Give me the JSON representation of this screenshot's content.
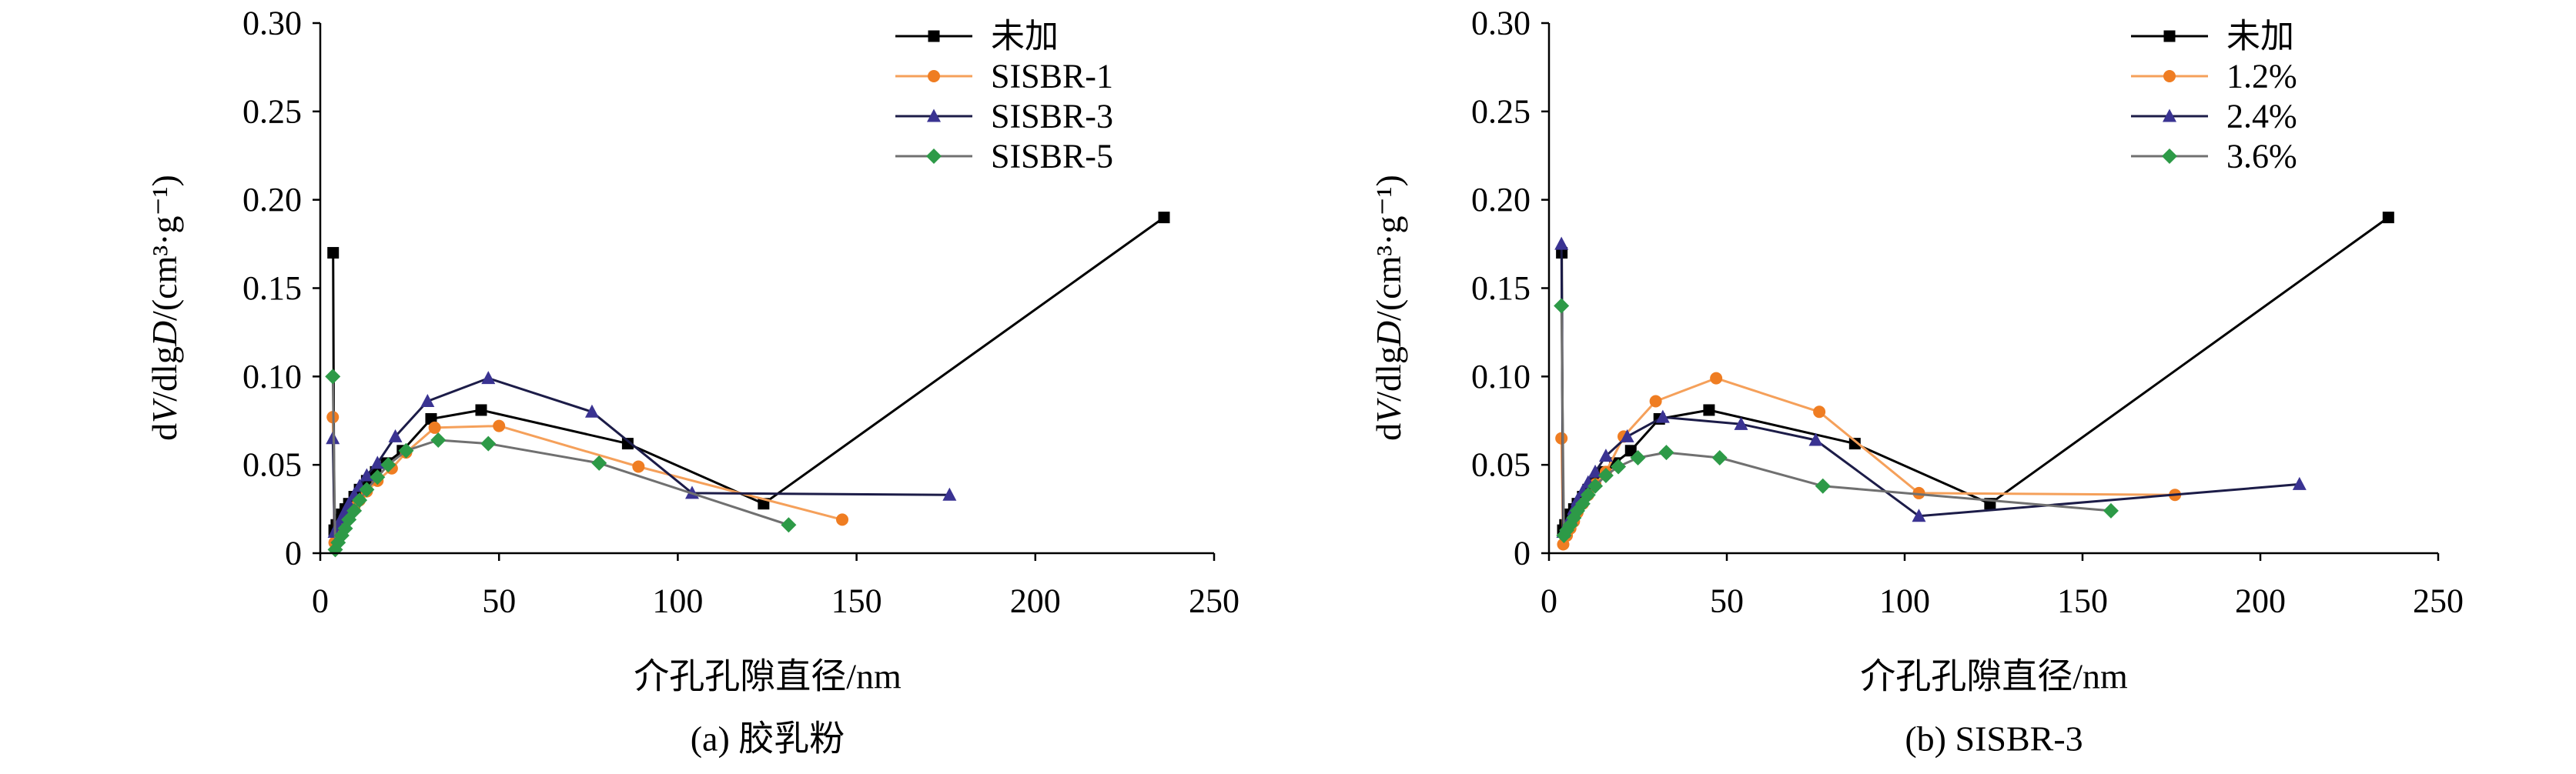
{
  "chart_data": [
    {
      "type": "line",
      "caption": "(a) 胶乳粉",
      "xlabel": "介孔孔隙直径/nm",
      "ylabel": "dV/dlgD/(cm³·g⁻¹)",
      "xlim": [
        0,
        250
      ],
      "ylim": [
        0,
        0.3
      ],
      "xticks": [
        "0",
        "50",
        "100",
        "150",
        "200",
        "250"
      ],
      "yticks": [
        "0",
        "0.05",
        "0.10",
        "0.15",
        "0.20",
        "0.25",
        "0.30"
      ],
      "grid": false,
      "legend_position": "top-right",
      "series": [
        {
          "name": "未加",
          "marker": "square",
          "color": "#000000",
          "line_color": "#000000",
          "x": [
            3.6,
            3.9,
            4.5,
            5.2,
            6,
            7,
            8,
            9.5,
            11,
            13,
            15.5,
            18.5,
            23,
            31,
            45,
            86,
            124,
            236
          ],
          "y": [
            0.17,
            0.013,
            0.016,
            0.019,
            0.022,
            0.025,
            0.028,
            0.032,
            0.036,
            0.041,
            0.046,
            0.051,
            0.058,
            0.076,
            0.081,
            0.062,
            0.028,
            0.19
          ]
        },
        {
          "name": "SISBR-1",
          "marker": "circle",
          "color": "#ef7d22",
          "line_color": "#f5a05a",
          "x": [
            3.5,
            4.0,
            5,
            6,
            7,
            8,
            9.5,
            11,
            13,
            16,
            20,
            24,
            32,
            50,
            89,
            146
          ],
          "y": [
            0.077,
            0.006,
            0.01,
            0.014,
            0.018,
            0.022,
            0.026,
            0.03,
            0.035,
            0.041,
            0.048,
            0.057,
            0.071,
            0.072,
            0.049,
            0.019
          ]
        },
        {
          "name": "SISBR-3",
          "marker": "triangle",
          "color": "#3a3392",
          "line_color": "#1c1c48",
          "x": [
            3.5,
            4.0,
            5,
            6,
            7,
            8,
            9.5,
            11,
            13,
            16,
            21,
            30,
            47,
            76,
            104,
            176
          ],
          "y": [
            0.065,
            0.012,
            0.016,
            0.02,
            0.024,
            0.028,
            0.033,
            0.038,
            0.044,
            0.051,
            0.066,
            0.086,
            0.099,
            0.08,
            0.034,
            0.033
          ]
        },
        {
          "name": "SISBR-5",
          "marker": "diamond",
          "color": "#2d9a47",
          "line_color": "#707070",
          "x": [
            3.5,
            4.2,
            5,
            6,
            7,
            8,
            9.5,
            11,
            13,
            16,
            19,
            24,
            33,
            47,
            78,
            131
          ],
          "y": [
            0.1,
            0.002,
            0.006,
            0.01,
            0.014,
            0.019,
            0.024,
            0.03,
            0.036,
            0.043,
            0.05,
            0.058,
            0.064,
            0.062,
            0.051,
            0.016
          ]
        }
      ]
    },
    {
      "type": "line",
      "caption": "(b) SISBR-3",
      "xlabel": "介孔孔隙直径/nm",
      "ylabel": "dV/dlgD/(cm³·g⁻¹)",
      "xlim": [
        0,
        250
      ],
      "ylim": [
        0,
        0.3
      ],
      "xticks": [
        "0",
        "50",
        "100",
        "150",
        "200",
        "250"
      ],
      "yticks": [
        "0",
        "0.05",
        "0.10",
        "0.15",
        "0.20",
        "0.25",
        "0.30"
      ],
      "grid": false,
      "legend_position": "top-right",
      "series": [
        {
          "name": "未加",
          "marker": "square",
          "color": "#000000",
          "line_color": "#000000",
          "x": [
            3.6,
            3.9,
            4.5,
            5.2,
            6,
            7,
            8,
            9.5,
            11,
            13,
            15.5,
            18.5,
            23,
            31,
            45,
            86,
            124,
            236
          ],
          "y": [
            0.17,
            0.013,
            0.016,
            0.019,
            0.022,
            0.025,
            0.028,
            0.032,
            0.036,
            0.041,
            0.046,
            0.051,
            0.058,
            0.076,
            0.081,
            0.062,
            0.028,
            0.19
          ]
        },
        {
          "name": "1.2%",
          "marker": "circle",
          "color": "#ef7d22",
          "line_color": "#f5a05a",
          "x": [
            3.5,
            4.0,
            5,
            6,
            7,
            8,
            9.5,
            11,
            13,
            16,
            21,
            30,
            47,
            76,
            104,
            176
          ],
          "y": [
            0.065,
            0.005,
            0.01,
            0.014,
            0.018,
            0.023,
            0.028,
            0.033,
            0.039,
            0.046,
            0.066,
            0.086,
            0.099,
            0.08,
            0.034,
            0.033
          ]
        },
        {
          "name": "2.4%",
          "marker": "triangle",
          "color": "#3a3392",
          "line_color": "#1c1c48",
          "x": [
            3.5,
            4.0,
            5,
            6,
            7,
            8,
            9.5,
            11,
            13,
            16,
            22,
            32,
            54,
            75,
            104,
            211
          ],
          "y": [
            0.175,
            0.012,
            0.016,
            0.02,
            0.025,
            0.03,
            0.035,
            0.04,
            0.046,
            0.055,
            0.066,
            0.077,
            0.073,
            0.064,
            0.021,
            0.039
          ]
        },
        {
          "name": "3.6%",
          "marker": "diamond",
          "color": "#2d9a47",
          "line_color": "#707070",
          "x": [
            3.5,
            4.2,
            5,
            6,
            7,
            8,
            9.5,
            11,
            13,
            16,
            19.5,
            25,
            33,
            48,
            77,
            158
          ],
          "y": [
            0.14,
            0.01,
            0.013,
            0.016,
            0.02,
            0.024,
            0.028,
            0.033,
            0.038,
            0.044,
            0.049,
            0.054,
            0.057,
            0.054,
            0.038,
            0.024
          ]
        }
      ]
    }
  ]
}
